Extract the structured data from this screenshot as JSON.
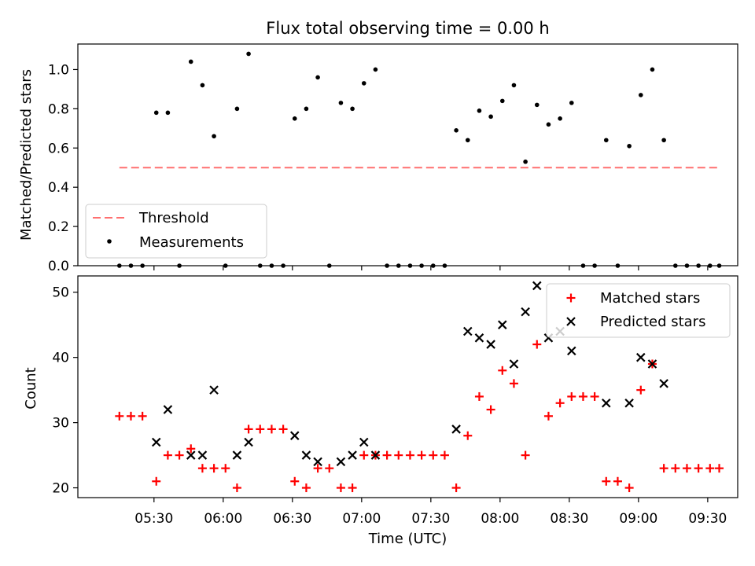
{
  "chart_data": [
    {
      "type": "scatter",
      "title": "Flux total observing time = 0.00 h",
      "xlabel": "",
      "ylabel": "Matched/Predicted stars",
      "ylim": [
        0,
        1.13
      ],
      "yticks": [
        "0.0",
        "0.2",
        "0.4",
        "0.6",
        "0.8",
        "1.0"
      ],
      "legend_position": "lower-left",
      "threshold": {
        "name": "Threshold",
        "value": 0.5,
        "x_start": "05:15",
        "x_end": "09:35",
        "color": "#ff7070"
      },
      "series": [
        {
          "name": "Measurements",
          "color": "#000000",
          "points": [
            [
              "05:15",
              0.0
            ],
            [
              "05:20",
              0.0
            ],
            [
              "05:25",
              0.0
            ],
            [
              "05:31",
              0.78
            ],
            [
              "05:36",
              0.78
            ],
            [
              "05:41",
              0.0
            ],
            [
              "05:46",
              1.04
            ],
            [
              "05:51",
              0.92
            ],
            [
              "05:56",
              0.66
            ],
            [
              "06:01",
              0.0
            ],
            [
              "06:06",
              0.8
            ],
            [
              "06:11",
              1.08
            ],
            [
              "06:16",
              0.0
            ],
            [
              "06:21",
              0.0
            ],
            [
              "06:26",
              0.0
            ],
            [
              "06:31",
              0.75
            ],
            [
              "06:36",
              0.8
            ],
            [
              "06:41",
              0.96
            ],
            [
              "06:46",
              0.0
            ],
            [
              "06:51",
              0.83
            ],
            [
              "06:56",
              0.8
            ],
            [
              "07:01",
              0.93
            ],
            [
              "07:06",
              1.0
            ],
            [
              "07:11",
              0.0
            ],
            [
              "07:16",
              0.0
            ],
            [
              "07:21",
              0.0
            ],
            [
              "07:26",
              0.0
            ],
            [
              "07:31",
              0.0
            ],
            [
              "07:36",
              0.0
            ],
            [
              "07:41",
              0.69
            ],
            [
              "07:46",
              0.64
            ],
            [
              "07:51",
              0.79
            ],
            [
              "07:56",
              0.76
            ],
            [
              "08:01",
              0.84
            ],
            [
              "08:06",
              0.92
            ],
            [
              "08:11",
              0.53
            ],
            [
              "08:16",
              0.82
            ],
            [
              "08:21",
              0.72
            ],
            [
              "08:26",
              0.75
            ],
            [
              "08:31",
              0.83
            ],
            [
              "08:36",
              0.0
            ],
            [
              "08:41",
              0.0
            ],
            [
              "08:46",
              0.64
            ],
            [
              "08:51",
              0.0
            ],
            [
              "08:56",
              0.61
            ],
            [
              "09:01",
              0.87
            ],
            [
              "09:06",
              1.0
            ],
            [
              "09:11",
              0.64
            ],
            [
              "09:16",
              0.0
            ],
            [
              "09:21",
              0.0
            ],
            [
              "09:26",
              0.0
            ],
            [
              "09:31",
              0.0
            ],
            [
              "09:35",
              0.0
            ]
          ]
        }
      ]
    },
    {
      "type": "scatter",
      "title": "",
      "xlabel": "Time (UTC)",
      "ylabel": "Count",
      "ylim": [
        18.5,
        52.5
      ],
      "yticks": [
        "20",
        "30",
        "40",
        "50"
      ],
      "xlim": [
        "04:57",
        "09:43"
      ],
      "xticks": [
        "05:30",
        "06:00",
        "06:30",
        "07:00",
        "07:30",
        "08:00",
        "08:30",
        "09:00",
        "09:30"
      ],
      "legend_position": "top-right",
      "series": [
        {
          "name": "Matched stars",
          "color": "#ff0000",
          "marker": "plus",
          "points": [
            [
              "05:15",
              31
            ],
            [
              "05:20",
              31
            ],
            [
              "05:25",
              31
            ],
            [
              "05:31",
              21
            ],
            [
              "05:36",
              25
            ],
            [
              "05:41",
              25
            ],
            [
              "05:46",
              26
            ],
            [
              "05:51",
              23
            ],
            [
              "05:56",
              23
            ],
            [
              "06:01",
              23
            ],
            [
              "06:06",
              20
            ],
            [
              "06:11",
              29
            ],
            [
              "06:16",
              29
            ],
            [
              "06:21",
              29
            ],
            [
              "06:26",
              29
            ],
            [
              "06:31",
              21
            ],
            [
              "06:36",
              20
            ],
            [
              "06:41",
              23
            ],
            [
              "06:46",
              23
            ],
            [
              "06:51",
              20
            ],
            [
              "06:56",
              20
            ],
            [
              "07:01",
              25
            ],
            [
              "07:06",
              25
            ],
            [
              "07:11",
              25
            ],
            [
              "07:16",
              25
            ],
            [
              "07:21",
              25
            ],
            [
              "07:26",
              25
            ],
            [
              "07:31",
              25
            ],
            [
              "07:36",
              25
            ],
            [
              "07:41",
              20
            ],
            [
              "07:46",
              28
            ],
            [
              "07:51",
              34
            ],
            [
              "07:56",
              32
            ],
            [
              "08:01",
              38
            ],
            [
              "08:06",
              36
            ],
            [
              "08:11",
              25
            ],
            [
              "08:16",
              42
            ],
            [
              "08:21",
              31
            ],
            [
              "08:26",
              33
            ],
            [
              "08:31",
              34
            ],
            [
              "08:36",
              34
            ],
            [
              "08:41",
              34
            ],
            [
              "08:46",
              21
            ],
            [
              "08:51",
              21
            ],
            [
              "08:56",
              20
            ],
            [
              "09:01",
              35
            ],
            [
              "09:06",
              39
            ],
            [
              "09:11",
              23
            ],
            [
              "09:16",
              23
            ],
            [
              "09:21",
              23
            ],
            [
              "09:26",
              23
            ],
            [
              "09:31",
              23
            ],
            [
              "09:35",
              23
            ]
          ]
        },
        {
          "name": "Predicted stars",
          "color": "#000000",
          "marker": "x",
          "points": [
            [
              "05:31",
              27
            ],
            [
              "05:36",
              32
            ],
            [
              "05:46",
              25
            ],
            [
              "05:51",
              25
            ],
            [
              "05:56",
              35
            ],
            [
              "06:06",
              25
            ],
            [
              "06:11",
              27
            ],
            [
              "06:31",
              28
            ],
            [
              "06:36",
              25
            ],
            [
              "06:41",
              24
            ],
            [
              "06:51",
              24
            ],
            [
              "06:56",
              25
            ],
            [
              "07:01",
              27
            ],
            [
              "07:06",
              25
            ],
            [
              "07:41",
              29
            ],
            [
              "07:46",
              44
            ],
            [
              "07:51",
              43
            ],
            [
              "07:56",
              42
            ],
            [
              "08:01",
              45
            ],
            [
              "08:06",
              39
            ],
            [
              "08:11",
              47
            ],
            [
              "08:16",
              51
            ],
            [
              "08:21",
              43
            ],
            [
              "08:26",
              44
            ],
            [
              "08:31",
              41
            ],
            [
              "08:46",
              33
            ],
            [
              "08:56",
              33
            ],
            [
              "09:01",
              40
            ],
            [
              "09:06",
              39
            ],
            [
              "09:11",
              36
            ]
          ]
        }
      ]
    }
  ]
}
